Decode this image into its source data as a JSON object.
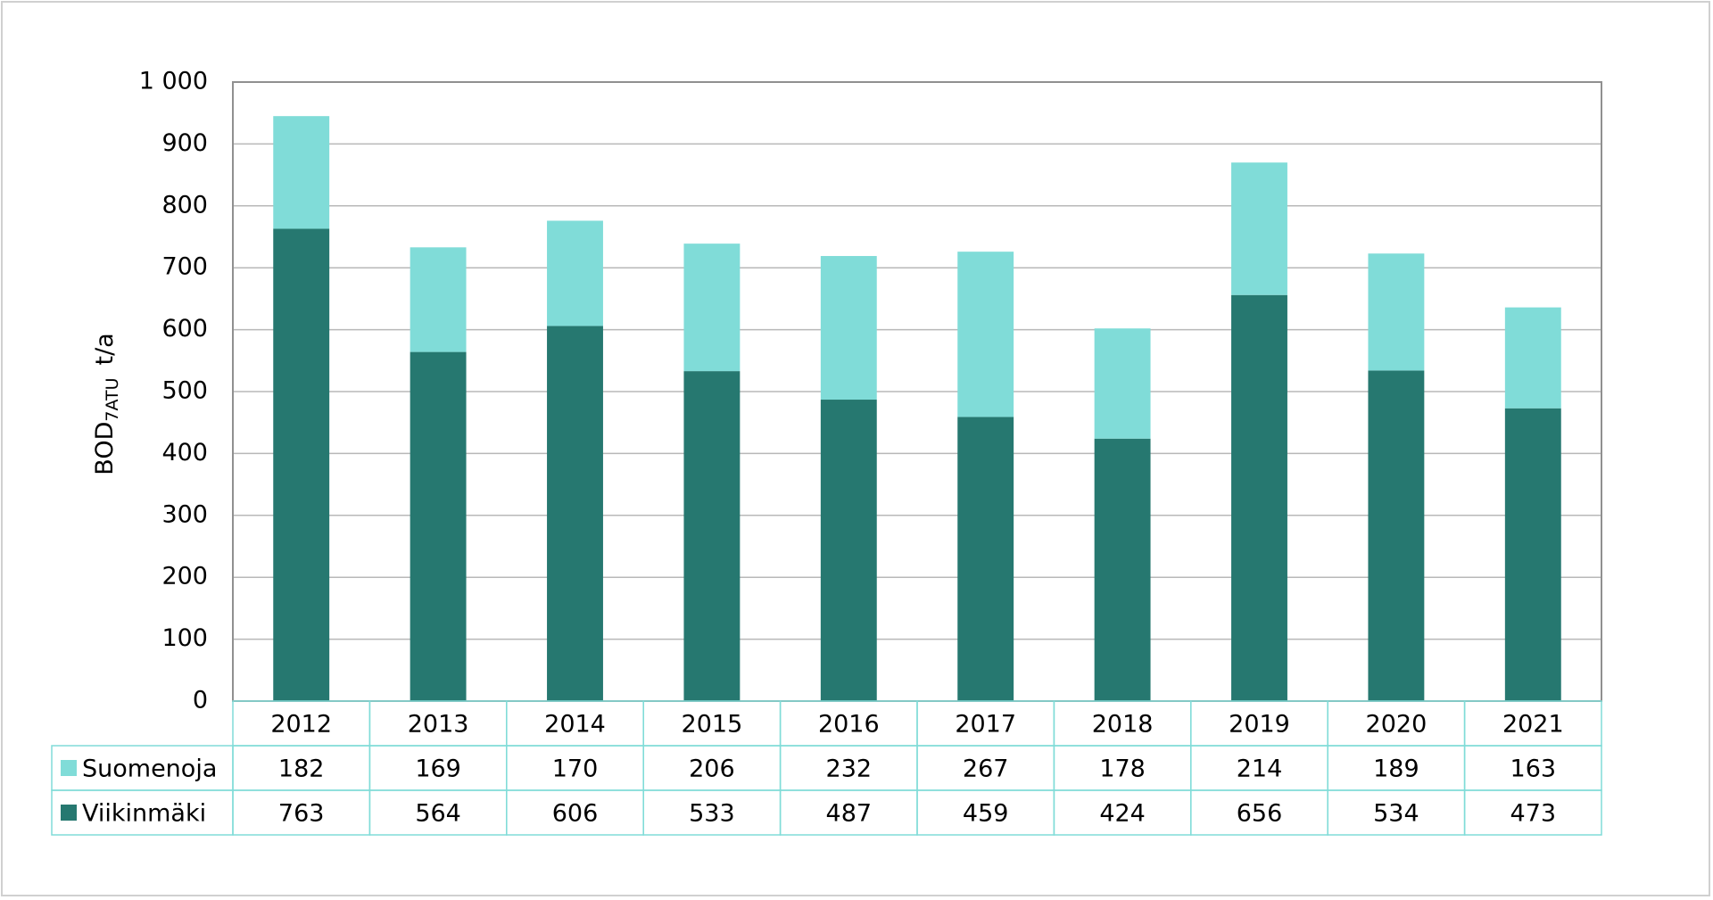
{
  "chart_data": {
    "type": "bar",
    "stacked": true,
    "y_label": {
      "main": "BOD",
      "sub": "7ATU",
      "unit": "t/a"
    },
    "categories": [
      "2012",
      "2013",
      "2014",
      "2015",
      "2016",
      "2017",
      "2018",
      "2019",
      "2020",
      "2021"
    ],
    "series": [
      {
        "name": "Suomenoja",
        "color": "#80dcd8",
        "values": [
          182,
          169,
          170,
          206,
          232,
          267,
          178,
          214,
          189,
          163
        ]
      },
      {
        "name": "Viikinmäki",
        "color": "#267870",
        "values": [
          763,
          564,
          606,
          533,
          487,
          459,
          424,
          656,
          534,
          473
        ]
      }
    ],
    "ylim": [
      0,
      1000
    ],
    "yticks": [
      0,
      100,
      200,
      300,
      400,
      500,
      600,
      700,
      800,
      900,
      {
        "value": 1000,
        "label": "1 000"
      }
    ],
    "grid": true
  }
}
